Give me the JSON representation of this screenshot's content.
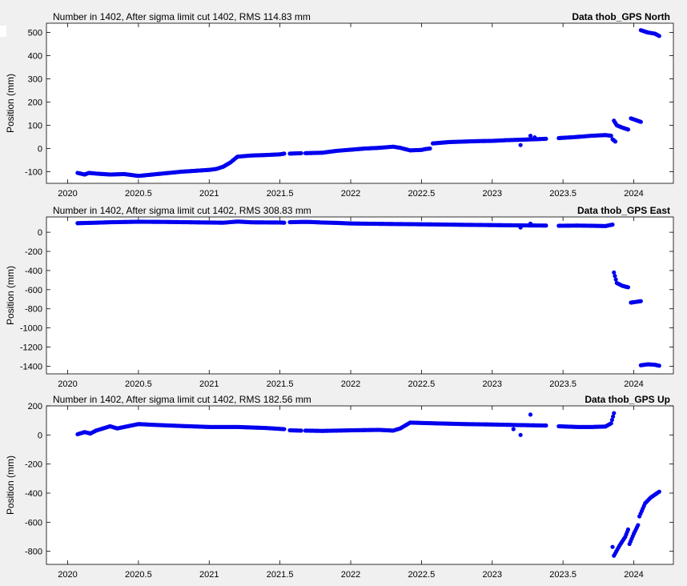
{
  "chart_data": [
    {
      "type": "scatter",
      "title_left": "Number in   1402, After sigma limit cut   1402, RMS 114.83 mm",
      "title_right": "Data thob_GPS North",
      "xlabel": "",
      "ylabel": "Position (mm)",
      "xlim": [
        2019.85,
        2024.28
      ],
      "ylim": [
        -150,
        540
      ],
      "xticks": [
        2020,
        2020.5,
        2021,
        2021.5,
        2022,
        2022.5,
        2023,
        2023.5,
        2024
      ],
      "xtick_labels": [
        "2020",
        "2020.5",
        "2021",
        "2021.5",
        "2022",
        "2022.5",
        "2023",
        "2023.5",
        "2024"
      ],
      "yticks": [
        -100,
        0,
        100,
        200,
        300,
        400,
        500
      ],
      "ytick_labels": [
        "-100",
        "0",
        "100",
        "200",
        "300",
        "400",
        "500"
      ],
      "marker_color": "#0000ee",
      "segments": [
        {
          "x": [
            2020.07,
            2020.12,
            2020.15,
            2020.2,
            2020.3,
            2020.4,
            2020.5,
            2020.6,
            2020.7,
            2020.8,
            2020.9,
            2021.0,
            2021.05,
            2021.1,
            2021.15,
            2021.2,
            2021.3,
            2021.4,
            2021.5,
            2021.53
          ],
          "y": [
            -105,
            -112,
            -105,
            -108,
            -112,
            -110,
            -118,
            -112,
            -106,
            -100,
            -96,
            -92,
            -88,
            -78,
            -60,
            -35,
            -30,
            -28,
            -25,
            -22
          ]
        },
        {
          "x": [
            2021.57,
            2021.65
          ],
          "y": [
            -22,
            -20
          ]
        },
        {
          "x": [
            2021.68,
            2021.8,
            2021.9,
            2022.0,
            2022.1,
            2022.2,
            2022.3,
            2022.35,
            2022.42,
            2022.5,
            2022.53,
            2022.56
          ],
          "y": [
            -20,
            -18,
            -10,
            -5,
            0,
            3,
            8,
            3,
            -8,
            -6,
            -2,
            0
          ]
        },
        {
          "x": [
            2022.58,
            2022.7,
            2022.8,
            2022.9,
            2023.0,
            2023.1,
            2023.2,
            2023.3,
            2023.38
          ],
          "y": [
            22,
            28,
            30,
            32,
            33,
            36,
            38,
            40,
            42
          ]
        },
        {
          "x": [
            2023.47,
            2023.6,
            2023.7,
            2023.8,
            2023.84
          ],
          "y": [
            45,
            50,
            55,
            58,
            55
          ]
        },
        {
          "x": [
            2023.85,
            2023.87
          ],
          "y": [
            40,
            30
          ]
        },
        {
          "x": [
            2023.86,
            2023.88,
            2023.92,
            2023.96
          ],
          "y": [
            120,
            100,
            90,
            82
          ]
        },
        {
          "x": [
            2023.98,
            2024.05
          ],
          "y": [
            130,
            115
          ]
        },
        {
          "x": [
            2024.05,
            2024.1,
            2024.15,
            2024.18
          ],
          "y": [
            510,
            500,
            495,
            485
          ]
        }
      ],
      "points": [
        {
          "x": 2023.2,
          "y": 15
        },
        {
          "x": 2023.27,
          "y": 55
        },
        {
          "x": 2023.3,
          "y": 48
        }
      ]
    },
    {
      "type": "scatter",
      "title_left": "Number in   1402, After sigma limit cut   1402, RMS 308.83 mm",
      "title_right": "Data thob_GPS East",
      "xlabel": "",
      "ylabel": "Position (mm)",
      "xlim": [
        2019.85,
        2024.28
      ],
      "ylim": [
        -1480,
        160
      ],
      "xticks": [
        2020,
        2020.5,
        2021,
        2021.5,
        2022,
        2022.5,
        2023,
        2023.5,
        2024
      ],
      "xtick_labels": [
        "2020",
        "2020.5",
        "2021",
        "2021.5",
        "2022",
        "2022.5",
        "2023",
        "2023.5",
        "2024"
      ],
      "yticks": [
        -1400,
        -1200,
        -1000,
        -800,
        -600,
        -400,
        -200,
        0
      ],
      "ytick_labels": [
        "-1400",
        "-1200",
        "-1000",
        "-800",
        "-600",
        "-400",
        "-200",
        "0"
      ],
      "marker_color": "#0000ee",
      "segments": [
        {
          "x": [
            2020.07,
            2020.2,
            2020.3,
            2020.5,
            2020.7,
            2020.9,
            2021.1,
            2021.2,
            2021.3,
            2021.5,
            2021.53
          ],
          "y": [
            95,
            100,
            105,
            110,
            108,
            104,
            100,
            112,
            104,
            102,
            100
          ]
        },
        {
          "x": [
            2021.57,
            2021.65,
            2021.7,
            2021.8,
            2021.9,
            2022.0,
            2022.2,
            2022.4,
            2022.6,
            2022.8,
            2023.0,
            2023.2,
            2023.38
          ],
          "y": [
            105,
            108,
            108,
            102,
            98,
            92,
            88,
            85,
            82,
            78,
            75,
            72,
            70
          ]
        },
        {
          "x": [
            2023.47,
            2023.6,
            2023.7,
            2023.8,
            2023.85
          ],
          "y": [
            68,
            70,
            68,
            65,
            80
          ]
        },
        {
          "x": [
            2023.86,
            2023.88,
            2023.92,
            2023.96
          ],
          "y": [
            -420,
            -530,
            -560,
            -575
          ]
        },
        {
          "x": [
            2023.98,
            2024.05
          ],
          "y": [
            -735,
            -720
          ]
        },
        {
          "x": [
            2024.05,
            2024.1,
            2024.15,
            2024.18
          ],
          "y": [
            -1390,
            -1380,
            -1385,
            -1395
          ]
        }
      ],
      "points": [
        {
          "x": 2023.2,
          "y": 50
        },
        {
          "x": 2023.27,
          "y": 90
        }
      ]
    },
    {
      "type": "scatter",
      "title_left": "Number in   1402, After sigma limit cut   1402, RMS 182.56 mm",
      "title_right": "Data thob_GPS Up",
      "xlabel": "",
      "ylabel": "Position (mm)",
      "xlim": [
        2019.85,
        2024.28
      ],
      "ylim": [
        -890,
        200
      ],
      "xticks": [
        2020,
        2020.5,
        2021,
        2021.5,
        2022,
        2022.5,
        2023,
        2023.5,
        2024
      ],
      "xtick_labels": [
        "2020",
        "2020.5",
        "2021",
        "2021.5",
        "2022",
        "2022.5",
        "2023",
        "2023.5",
        "2024"
      ],
      "yticks": [
        -800,
        -600,
        -400,
        -200,
        0,
        200
      ],
      "ytick_labels": [
        "-800",
        "-600",
        "-400",
        "-200",
        "0",
        "200"
      ],
      "marker_color": "#0000ee",
      "segments": [
        {
          "x": [
            2020.07,
            2020.12,
            2020.16,
            2020.2,
            2020.3,
            2020.35,
            2020.45,
            2020.5,
            2020.6,
            2020.8,
            2021.0,
            2021.2,
            2021.4,
            2021.5,
            2021.53
          ],
          "y": [
            5,
            20,
            10,
            30,
            60,
            45,
            65,
            75,
            70,
            62,
            55,
            55,
            48,
            42,
            40
          ]
        },
        {
          "x": [
            2021.57,
            2021.65
          ],
          "y": [
            32,
            30
          ]
        },
        {
          "x": [
            2021.68,
            2021.8,
            2022.0,
            2022.2,
            2022.3,
            2022.35,
            2022.42,
            2022.6,
            2022.8,
            2023.0,
            2023.2,
            2023.38
          ],
          "y": [
            30,
            28,
            32,
            35,
            30,
            45,
            85,
            80,
            75,
            72,
            68,
            65
          ]
        },
        {
          "x": [
            2023.47,
            2023.6,
            2023.7,
            2023.8,
            2023.84,
            2023.86
          ],
          "y": [
            60,
            55,
            55,
            58,
            80,
            150
          ]
        },
        {
          "x": [
            2023.86,
            2023.9,
            2023.94,
            2023.96
          ],
          "y": [
            -830,
            -760,
            -700,
            -650
          ]
        },
        {
          "x": [
            2023.97,
            2024.0,
            2024.03
          ],
          "y": [
            -750,
            -680,
            -620
          ]
        },
        {
          "x": [
            2024.04,
            2024.08,
            2024.12,
            2024.15,
            2024.18
          ],
          "y": [
            -560,
            -470,
            -430,
            -410,
            -390
          ]
        }
      ],
      "points": [
        {
          "x": 2023.15,
          "y": 40
        },
        {
          "x": 2023.2,
          "y": 0
        },
        {
          "x": 2023.27,
          "y": 140
        },
        {
          "x": 2023.85,
          "y": -770
        }
      ]
    }
  ]
}
